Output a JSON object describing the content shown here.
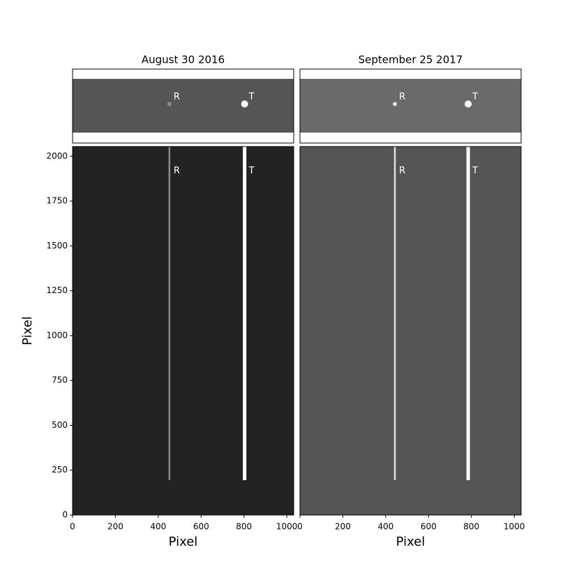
{
  "chart_data": [
    {
      "type": "image",
      "title": "August 30 2016",
      "xlabel": "Pixel",
      "ylabel": "Pixel",
      "xlim": [
        0,
        1032
      ],
      "ylim": [
        0,
        2054
      ],
      "xticks": [
        0,
        200,
        400,
        600,
        800,
        1000
      ],
      "yticks": [
        0,
        250,
        500,
        750,
        1000,
        1250,
        1500,
        1750,
        2000
      ],
      "background": "#232323",
      "band": "#555555",
      "traces": [
        {
          "label": "R",
          "x": 452,
          "color": "#8a8a8a"
        },
        {
          "label": "T",
          "x": 803,
          "color": "#ffffff"
        }
      ]
    },
    {
      "type": "image",
      "title": "September 25 2017",
      "xlabel": "Pixel",
      "xlim": [
        0,
        1032
      ],
      "ylim": [
        0,
        2054
      ],
      "xticks": [
        0,
        200,
        400,
        600,
        800,
        1000
      ],
      "background": "#555555",
      "band": "#6a6a6a",
      "traces": [
        {
          "label": "R",
          "x": 443,
          "color": "#e0e0e0"
        },
        {
          "label": "T",
          "x": 785,
          "color": "#ffffff"
        }
      ]
    }
  ]
}
